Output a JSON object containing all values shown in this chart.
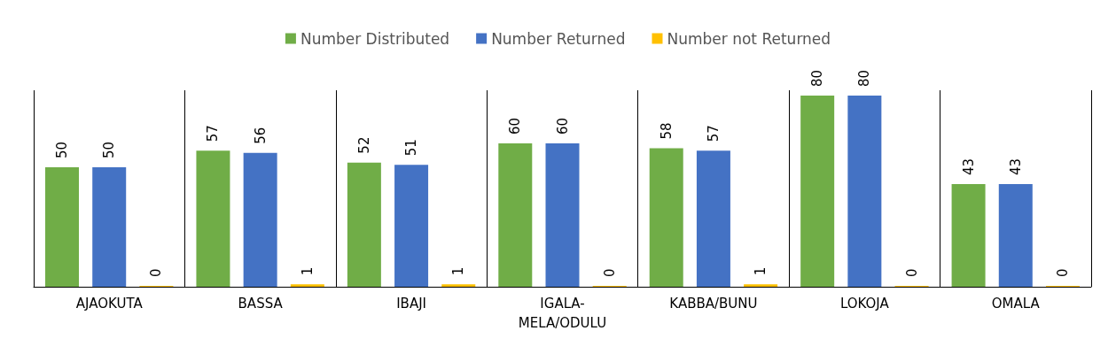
{
  "chart_data": {
    "type": "bar",
    "categories": [
      "AJAOKUTA",
      "BASSA",
      "IBAJI",
      "IGALA-MELA/ODULU",
      "KABBA/BUNU",
      "LOKOJA",
      "OMALA"
    ],
    "series": [
      {
        "name": "Number Distributed",
        "color": "#70ad47",
        "values": [
          50,
          57,
          52,
          60,
          58,
          80,
          43
        ]
      },
      {
        "name": "Number Returned",
        "color": "#4472c4",
        "values": [
          50,
          56,
          51,
          60,
          57,
          80,
          43
        ]
      },
      {
        "name": "Number not Returned",
        "color": "#ffc000",
        "values": [
          0,
          1,
          1,
          0,
          1,
          0,
          0
        ]
      }
    ],
    "data_labels": true,
    "legend": "top",
    "grid": false
  }
}
